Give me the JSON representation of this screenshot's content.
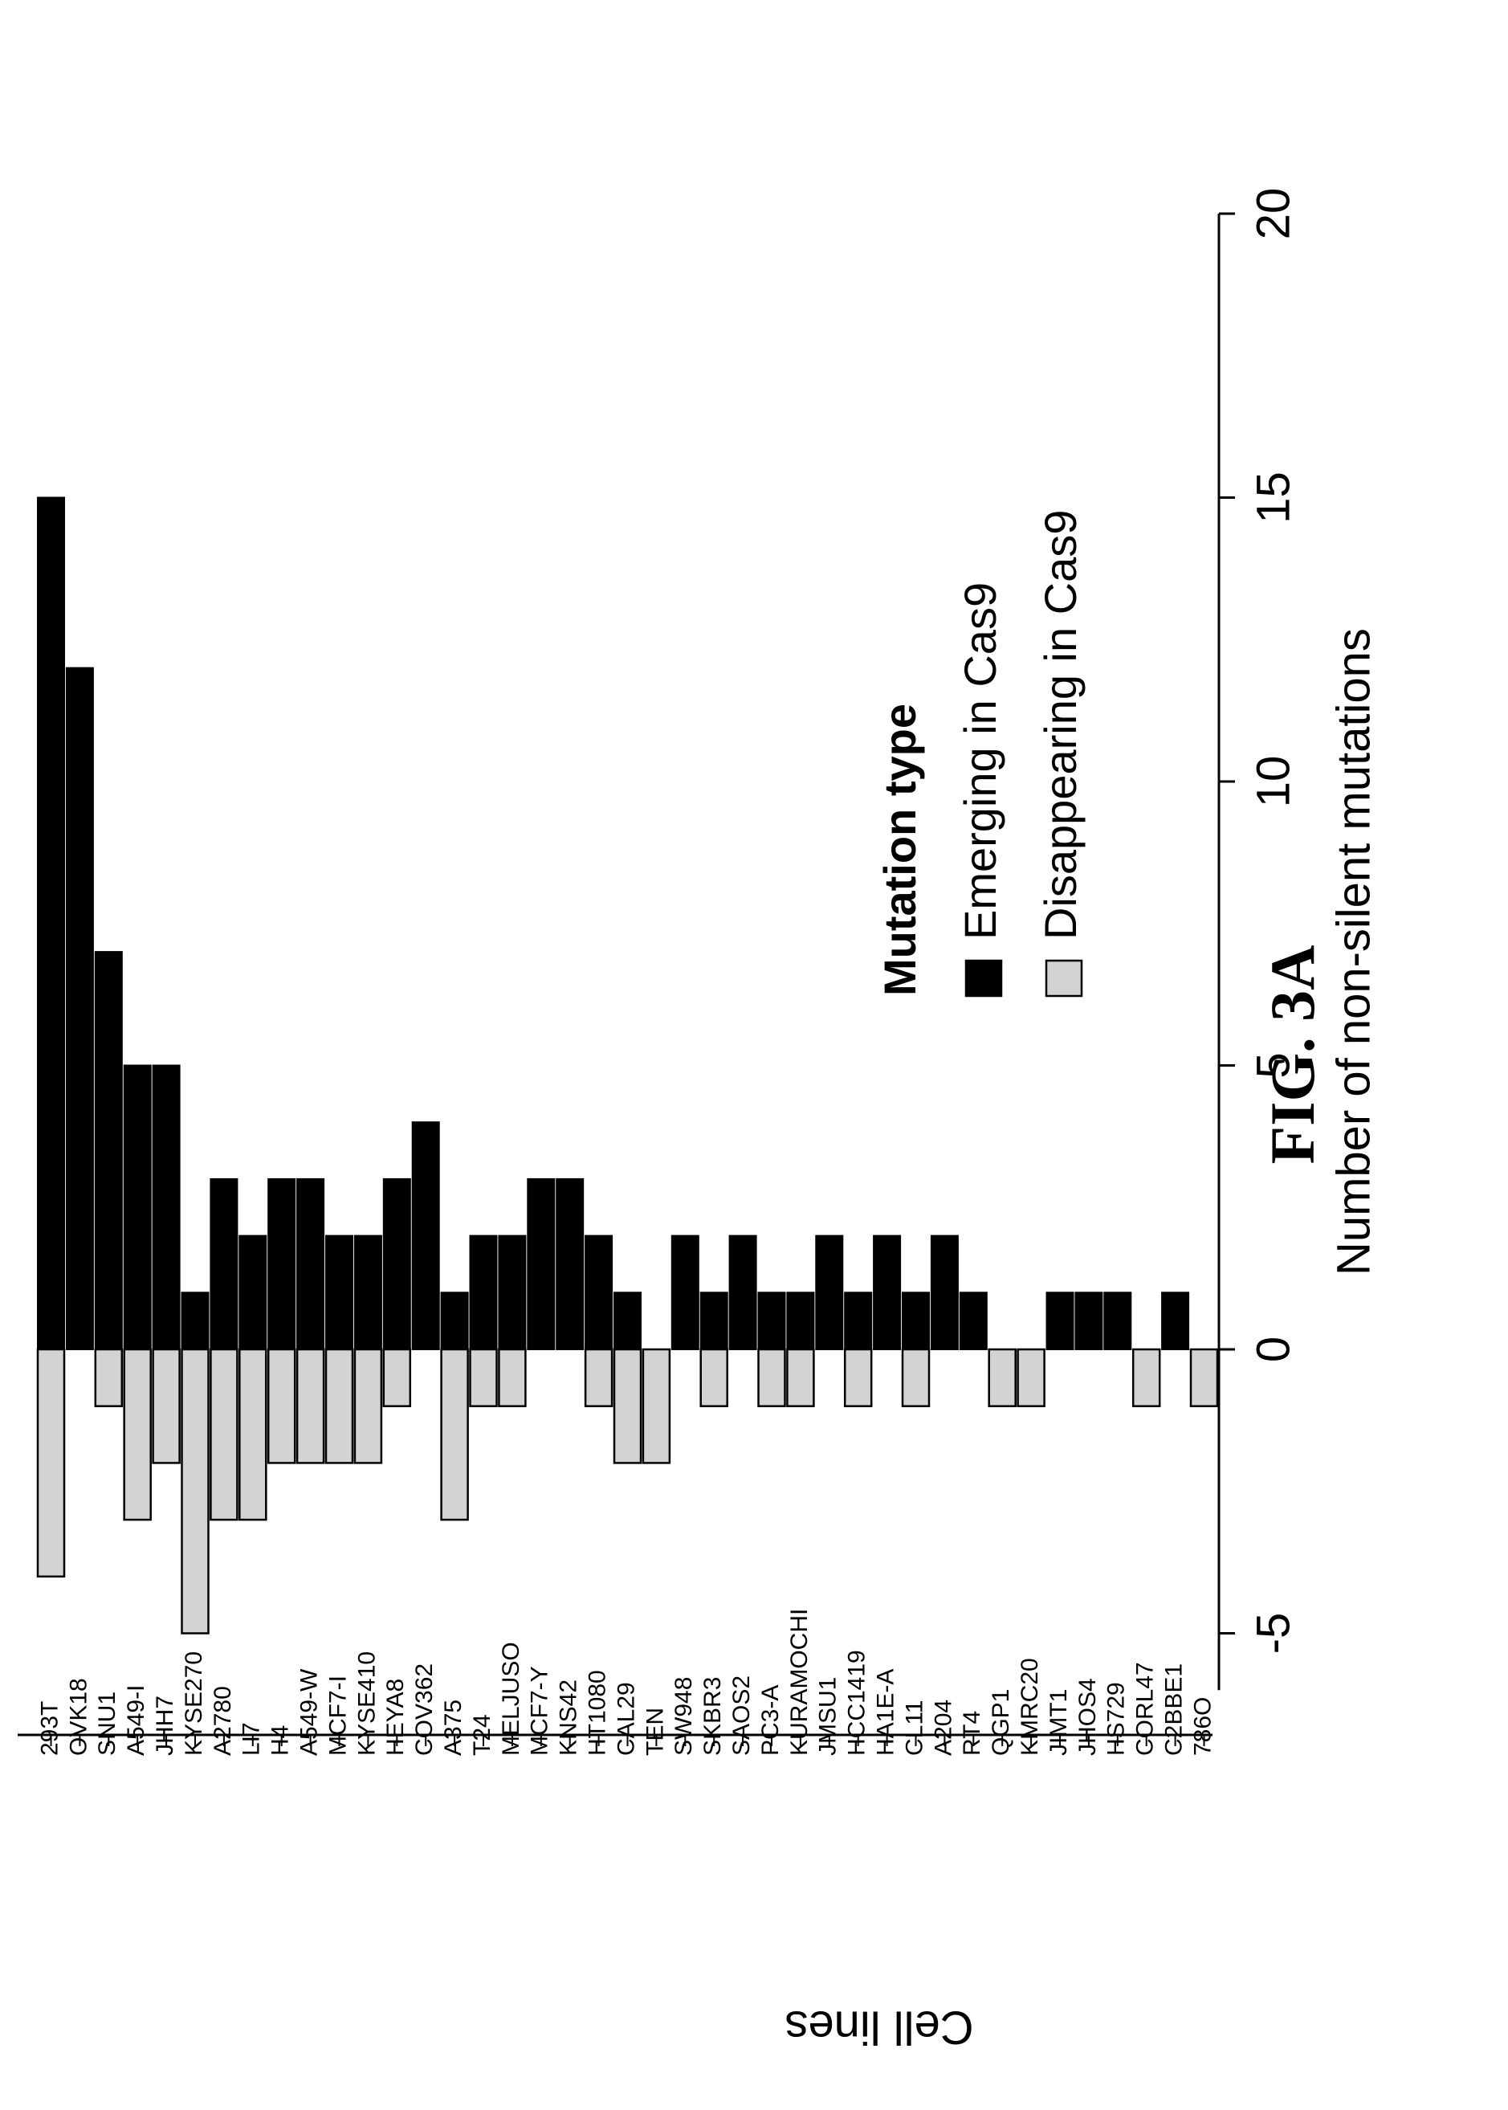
{
  "figure_label": "FIG. 3A",
  "chart_data": {
    "type": "bar",
    "orientation": "rotated",
    "xlabel": "Cell lines",
    "ylabel": "Number of non-silent mutations",
    "ylim": [
      -6,
      20
    ],
    "yticks": [
      -5,
      0,
      5,
      10,
      15,
      20
    ],
    "grid": false,
    "legend": {
      "title": "Mutation type",
      "placement": "top-right"
    },
    "categories": [
      "293T",
      "OVK18",
      "SNU1",
      "A549-I",
      "JHH7",
      "KYSE270",
      "A2780",
      "LI7",
      "H4",
      "A549-W",
      "MCF7-I",
      "KYSE410",
      "HEYA8",
      "COV362",
      "A375",
      "T24",
      "MELJUSO",
      "MCF7-Y",
      "KNS42",
      "HT1080",
      "CAL29",
      "TEN",
      "SW948",
      "SKBR3",
      "SAOS2",
      "PC3-A",
      "KURAMOCHI",
      "JMSU1",
      "HCC1419",
      "HA1E-A",
      "CL11",
      "A204",
      "RT4",
      "QGP1",
      "KMRC20",
      "JIMT1",
      "JHOS4",
      "HS729",
      "CORL47",
      "C2BBE1",
      "786O"
    ],
    "series": [
      {
        "name": "Emerging in Cas9",
        "color": "#000000",
        "values": [
          15,
          12,
          7,
          5,
          5,
          1,
          3,
          2,
          3,
          3,
          2,
          2,
          3,
          4,
          1,
          2,
          2,
          3,
          3,
          2,
          1,
          0,
          2,
          1,
          2,
          1,
          1,
          2,
          1,
          2,
          1,
          2,
          1,
          0,
          0,
          1,
          1,
          1,
          0,
          1,
          0
        ]
      },
      {
        "name": "Disappearing in Cas9",
        "color": "#d3d3d3",
        "values": [
          -4,
          0,
          -1,
          -3,
          -2,
          -5,
          -3,
          -3,
          -2,
          -2,
          -2,
          -2,
          -1,
          0,
          -3,
          -1,
          -1,
          0,
          0,
          -1,
          -2,
          -2,
          0,
          -1,
          0,
          -1,
          -1,
          0,
          -1,
          0,
          -1,
          0,
          0,
          -1,
          -1,
          0,
          0,
          0,
          -1,
          0,
          -1
        ]
      }
    ]
  }
}
